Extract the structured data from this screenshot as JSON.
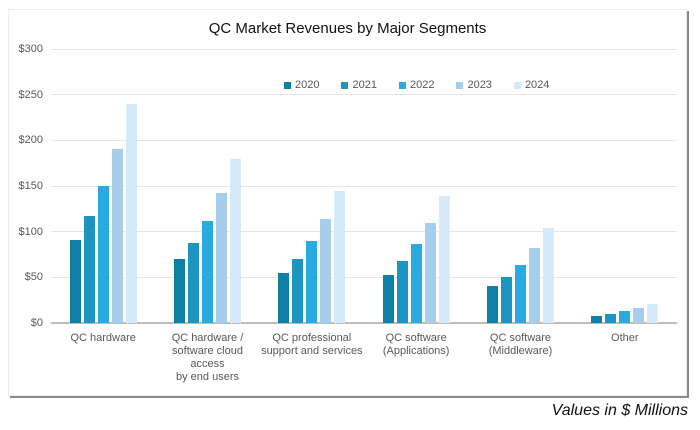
{
  "title": "QC Market Revenues by Major Segments",
  "footnote": "Values in $ Millions",
  "chart_data": {
    "type": "bar",
    "title": "QC Market Revenues by Major Segments",
    "categories": [
      "QC hardware",
      "QC hardware / software cloud access by end users",
      "QC professional support and services",
      "QC software (Applications)",
      "QC software (Middleware)",
      "Other"
    ],
    "category_label_lines": [
      [
        "QC hardware"
      ],
      [
        "QC hardware /",
        "software cloud access",
        "by end users"
      ],
      [
        "QC professional",
        "support and services"
      ],
      [
        "QC software",
        "(Applications)"
      ],
      [
        "QC software",
        "(Middleware)"
      ],
      [
        "Other"
      ]
    ],
    "series": [
      {
        "name": "2020",
        "color": "#0e7fa5",
        "values": [
          91,
          70,
          55,
          53,
          40,
          8
        ]
      },
      {
        "name": "2021",
        "color": "#1d95c1",
        "values": [
          117,
          88,
          70,
          68,
          50,
          10
        ]
      },
      {
        "name": "2022",
        "color": "#29abe2",
        "values": [
          150,
          112,
          90,
          87,
          64,
          13
        ]
      },
      {
        "name": "2023",
        "color": "#a6cdec",
        "values": [
          190,
          142,
          114,
          110,
          82,
          16
        ]
      },
      {
        "name": "2024",
        "color": "#d6e9f8",
        "values": [
          240,
          180,
          145,
          139,
          104,
          21
        ]
      }
    ],
    "xlabel": "",
    "ylabel": "",
    "ylim": [
      0,
      300
    ],
    "ytick_step": 50,
    "ytick_labels": [
      "$0",
      "$50",
      "$100",
      "$150",
      "$200",
      "$250",
      "$300"
    ],
    "grid": true,
    "legend_position": "top-center",
    "values_note": "Values in $ Millions"
  }
}
